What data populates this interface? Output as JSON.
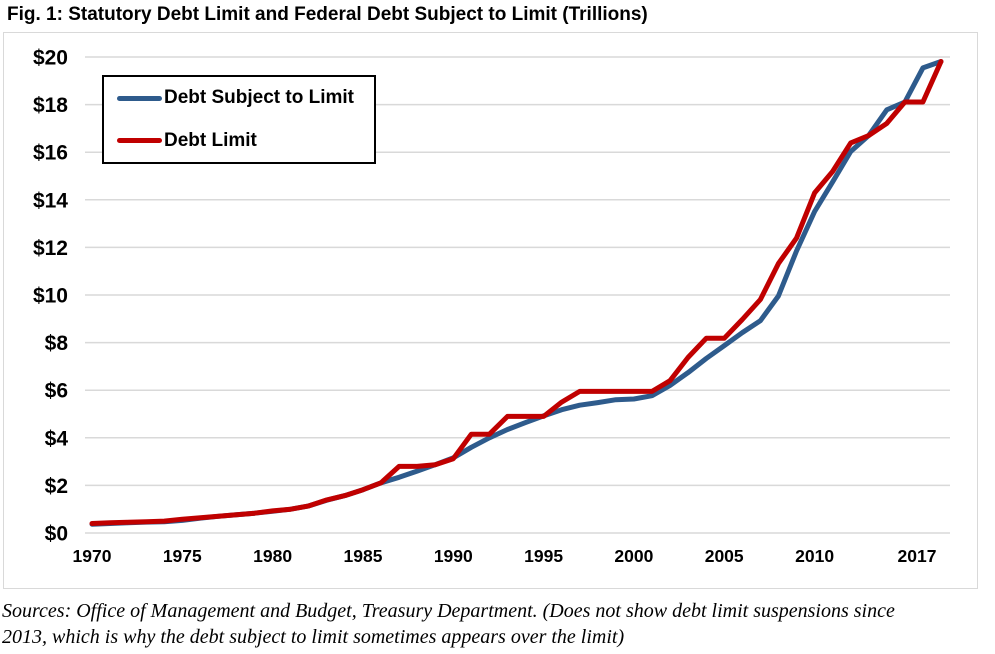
{
  "title": "Fig. 1: Statutory Debt Limit and Federal Debt Subject to Limit (Trillions)",
  "footer": {
    "lines": [
      "Sources: Office of Management and Budget, Treasury Department. (Does not show debt limit suspensions since",
      "2013, which is why the debt subject to limit sometimes appears over the limit)"
    ]
  },
  "chart_data": {
    "type": "line",
    "title": "Fig. 1: Statutory Debt Limit and Federal Debt Subject to Limit (Trillions)",
    "ylabel": "",
    "xlabel": "",
    "ylim": [
      0,
      20
    ],
    "xlim": [
      1970,
      2017
    ],
    "grid": "horizontal",
    "gridline_color": "#D9D9D9",
    "axis_text_color": "#000000",
    "legend_position": "top-left-box",
    "y_ticks": [
      0,
      2,
      4,
      6,
      8,
      10,
      12,
      14,
      16,
      18,
      20
    ],
    "y_tick_labels": [
      "$0",
      "$2",
      "$4",
      "$6",
      "$8",
      "$10",
      "$12",
      "$14",
      "$16",
      "$18",
      "$20"
    ],
    "x_ticks": [
      1970,
      1975,
      1980,
      1985,
      1990,
      1995,
      2000,
      2005,
      2010,
      2017
    ],
    "x_tick_labels": [
      "1970",
      "1975",
      "1980",
      "1985",
      "1990",
      "1995",
      "2000",
      "2005",
      "2010",
      "2017"
    ],
    "x": [
      1970,
      1971,
      1972,
      1973,
      1974,
      1975,
      1976,
      1977,
      1978,
      1979,
      1980,
      1981,
      1982,
      1983,
      1984,
      1985,
      1986,
      1987,
      1988,
      1989,
      1990,
      1991,
      1992,
      1993,
      1994,
      1995,
      1996,
      1997,
      1998,
      1999,
      2000,
      2001,
      2002,
      2003,
      2004,
      2005,
      2006,
      2007,
      2008,
      2009,
      2010,
      2011,
      2012,
      2013,
      2014,
      2015,
      2016,
      2017
    ],
    "series": [
      {
        "name": "Debt Subject to Limit",
        "color": "#2E5B8C",
        "values": [
          0.37,
          0.4,
          0.43,
          0.46,
          0.47,
          0.53,
          0.62,
          0.7,
          0.77,
          0.83,
          0.91,
          1.0,
          1.14,
          1.38,
          1.57,
          1.82,
          2.11,
          2.34,
          2.6,
          2.87,
          3.16,
          3.6,
          4.0,
          4.35,
          4.64,
          4.92,
          5.18,
          5.37,
          5.48,
          5.6,
          5.63,
          5.77,
          6.2,
          6.74,
          7.33,
          7.87,
          8.42,
          8.92,
          9.96,
          11.85,
          13.51,
          14.75,
          16.03,
          16.7,
          17.78,
          18.11,
          19.54,
          19.81
        ]
      },
      {
        "name": "Debt Limit",
        "color": "#C00000",
        "values": [
          0.4,
          0.43,
          0.45,
          0.47,
          0.5,
          0.58,
          0.64,
          0.7,
          0.77,
          0.83,
          0.93,
          1.0,
          1.14,
          1.39,
          1.57,
          1.82,
          2.11,
          2.8,
          2.8,
          2.87,
          3.12,
          4.15,
          4.15,
          4.9,
          4.9,
          4.9,
          5.5,
          5.95,
          5.95,
          5.95,
          5.95,
          5.95,
          6.4,
          7.38,
          8.18,
          8.18,
          8.97,
          9.81,
          11.32,
          12.39,
          14.29,
          15.19,
          16.39,
          16.7,
          17.21,
          18.11,
          18.11,
          19.81
        ]
      }
    ]
  }
}
